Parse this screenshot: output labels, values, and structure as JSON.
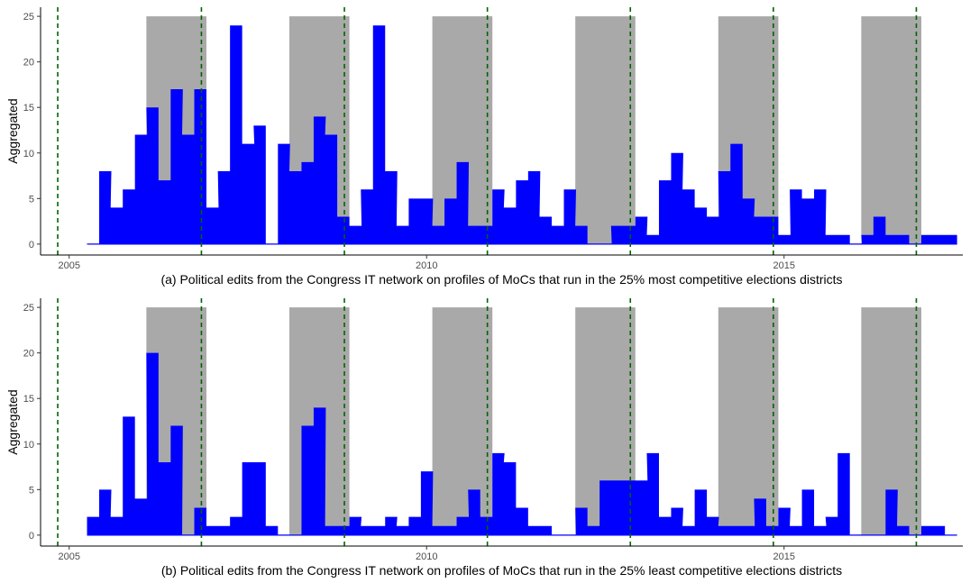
{
  "colors": {
    "bar": "#0000ff",
    "band": "#a9a9a9",
    "vline": "#006400",
    "axis": "#000000",
    "text": "#4d4d4d"
  },
  "chart_data": [
    {
      "type": "area",
      "caption": "(a) Political edits from the Congress IT network on profiles of MoCs that run in the 25% most competitive elections districts",
      "ylabel": "Aggregated",
      "xlabel": "",
      "x_ticks": [
        2005,
        2010,
        2015
      ],
      "x_tick_labels": [
        "2005",
        "2010",
        "2015"
      ],
      "y_ticks": [
        0,
        5,
        10,
        15,
        20,
        25
      ],
      "y_tick_labels": [
        "0",
        "5",
        "10",
        "15",
        "20",
        "25"
      ],
      "xlim": [
        2004.6,
        2017.5
      ],
      "ylim": [
        -1.2,
        26
      ],
      "grid": false,
      "legend": "none",
      "shaded_periods": [
        [
          2006.08,
          2006.92
        ],
        [
          2008.08,
          2008.92
        ],
        [
          2010.08,
          2010.92
        ],
        [
          2012.08,
          2012.92
        ],
        [
          2014.08,
          2014.92
        ],
        [
          2016.08,
          2016.92
        ]
      ],
      "shaded_top": 25,
      "election_lines": [
        2004.84,
        2006.85,
        2008.85,
        2010.85,
        2012.85,
        2014.85,
        2016.85
      ],
      "series": [
        {
          "x": [
            2005.25,
            2005.42,
            2005.58,
            2005.75,
            2005.92,
            2006.08,
            2006.25,
            2006.42,
            2006.58,
            2006.75,
            2006.92,
            2007.08,
            2007.25,
            2007.42,
            2007.58,
            2007.75,
            2007.92,
            2008.08,
            2008.25,
            2008.42,
            2008.58,
            2008.75,
            2008.92,
            2009.08,
            2009.25,
            2009.42,
            2009.58,
            2009.75,
            2009.92,
            2010.08,
            2010.25,
            2010.42,
            2010.58,
            2010.75,
            2010.92,
            2011.08,
            2011.25,
            2011.42,
            2011.58,
            2011.75,
            2011.92,
            2012.08,
            2012.25,
            2012.42,
            2012.58,
            2012.75,
            2012.92,
            2013.08,
            2013.25,
            2013.42,
            2013.58,
            2013.75,
            2013.92,
            2014.08,
            2014.25,
            2014.42,
            2014.58,
            2014.75,
            2014.92,
            2015.08,
            2015.25,
            2015.42,
            2015.58,
            2015.75,
            2015.92,
            2016.08,
            2016.25,
            2016.42,
            2016.58,
            2016.75,
            2016.92,
            2017.08,
            2017.25
          ],
          "values": [
            0,
            8,
            4,
            6,
            12,
            15,
            7,
            17,
            12,
            17,
            4,
            8,
            24,
            11,
            13,
            0,
            11,
            8,
            9,
            14,
            12,
            3,
            2,
            6,
            24,
            8,
            2,
            5,
            5,
            2,
            5,
            9,
            2,
            2,
            6,
            4,
            7,
            8,
            3,
            2,
            6,
            2,
            0,
            0,
            2,
            2,
            3,
            1,
            7,
            10,
            6,
            4,
            3,
            8,
            11,
            5,
            3,
            3,
            1,
            6,
            5,
            6,
            1,
            1,
            0,
            1,
            3,
            1,
            1,
            0,
            1,
            1,
            1
          ]
        }
      ]
    },
    {
      "type": "area",
      "caption": "(b) Political edits from the Congress IT network on profiles of MoCs that run in the 25% least competitive elections districts",
      "ylabel": "Aggregated",
      "xlabel": "",
      "x_ticks": [
        2005,
        2010,
        2015
      ],
      "x_tick_labels": [
        "2005",
        "2010",
        "2015"
      ],
      "y_ticks": [
        0,
        5,
        10,
        15,
        20,
        25
      ],
      "y_tick_labels": [
        "0",
        "5",
        "10",
        "15",
        "20",
        "25"
      ],
      "xlim": [
        2004.6,
        2017.5
      ],
      "ylim": [
        -1.2,
        26
      ],
      "grid": false,
      "legend": "none",
      "shaded_periods": [
        [
          2006.08,
          2006.92
        ],
        [
          2008.08,
          2008.92
        ],
        [
          2010.08,
          2010.92
        ],
        [
          2012.08,
          2012.92
        ],
        [
          2014.08,
          2014.92
        ],
        [
          2016.08,
          2016.92
        ]
      ],
      "shaded_top": 25,
      "election_lines": [
        2004.84,
        2006.85,
        2008.85,
        2010.85,
        2012.85,
        2014.85,
        2016.85
      ],
      "series": [
        {
          "x": [
            2005.25,
            2005.42,
            2005.58,
            2005.75,
            2005.92,
            2006.08,
            2006.25,
            2006.42,
            2006.58,
            2006.75,
            2006.92,
            2007.08,
            2007.25,
            2007.42,
            2007.58,
            2007.75,
            2007.92,
            2008.08,
            2008.25,
            2008.42,
            2008.58,
            2008.75,
            2008.92,
            2009.08,
            2009.25,
            2009.42,
            2009.58,
            2009.75,
            2009.92,
            2010.08,
            2010.25,
            2010.42,
            2010.58,
            2010.75,
            2010.92,
            2011.08,
            2011.25,
            2011.42,
            2011.58,
            2011.75,
            2011.92,
            2012.08,
            2012.25,
            2012.42,
            2012.58,
            2012.75,
            2012.92,
            2013.08,
            2013.25,
            2013.42,
            2013.58,
            2013.75,
            2013.92,
            2014.08,
            2014.25,
            2014.42,
            2014.58,
            2014.75,
            2014.92,
            2015.08,
            2015.25,
            2015.42,
            2015.58,
            2015.75,
            2015.92,
            2016.08,
            2016.25,
            2016.42,
            2016.58,
            2016.75,
            2016.92,
            2017.08,
            2017.25
          ],
          "values": [
            2,
            5,
            2,
            13,
            4,
            20,
            8,
            12,
            0,
            3,
            1,
            1,
            2,
            8,
            8,
            1,
            0,
            0,
            12,
            14,
            1,
            1,
            2,
            1,
            1,
            2,
            1,
            2,
            7,
            1,
            1,
            2,
            5,
            2,
            9,
            8,
            3,
            1,
            1,
            0,
            0,
            3,
            1,
            6,
            6,
            6,
            6,
            9,
            2,
            3,
            1,
            5,
            2,
            1,
            1,
            1,
            4,
            1,
            3,
            1,
            5,
            1,
            2,
            9,
            0,
            0,
            0,
            5,
            1,
            0,
            1,
            1,
            0
          ]
        }
      ]
    }
  ]
}
